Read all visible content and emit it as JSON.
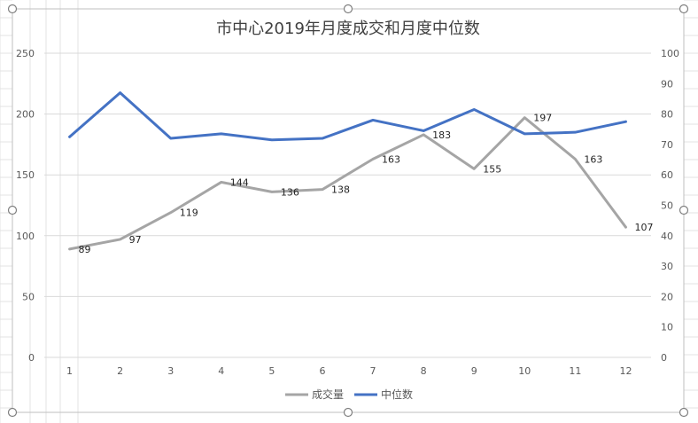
{
  "chart_data": {
    "type": "line",
    "title": "市中心2019年月度成交和月度中位数",
    "categories": [
      "1",
      "2",
      "3",
      "4",
      "5",
      "6",
      "7",
      "8",
      "9",
      "10",
      "11",
      "12"
    ],
    "y_left": {
      "min": 0,
      "max": 250,
      "ticks": [
        "0",
        "50",
        "100",
        "150",
        "200",
        "250"
      ]
    },
    "y_right": {
      "min": 0,
      "max": 100,
      "ticks": [
        "0",
        "10",
        "20",
        "30",
        "40",
        "50",
        "60",
        "70",
        "80",
        "90",
        "100"
      ]
    },
    "series": [
      {
        "name": "成交量",
        "axis": "left",
        "color": "#a5a5a5",
        "values": [
          89,
          97,
          119,
          144,
          136,
          138,
          163,
          183,
          155,
          197,
          163,
          107
        ],
        "data_labels": [
          "89",
          "97",
          "119",
          "144",
          "136",
          "138",
          "163",
          "183",
          "155",
          "197",
          "163",
          "107"
        ]
      },
      {
        "name": "中位数",
        "axis": "right",
        "color": "#4472c4",
        "values": [
          72.5,
          87,
          72,
          73.5,
          71.5,
          72,
          78,
          74.5,
          81.5,
          73.5,
          74,
          77.5
        ]
      }
    ],
    "legend_position": "bottom",
    "grid": true
  }
}
